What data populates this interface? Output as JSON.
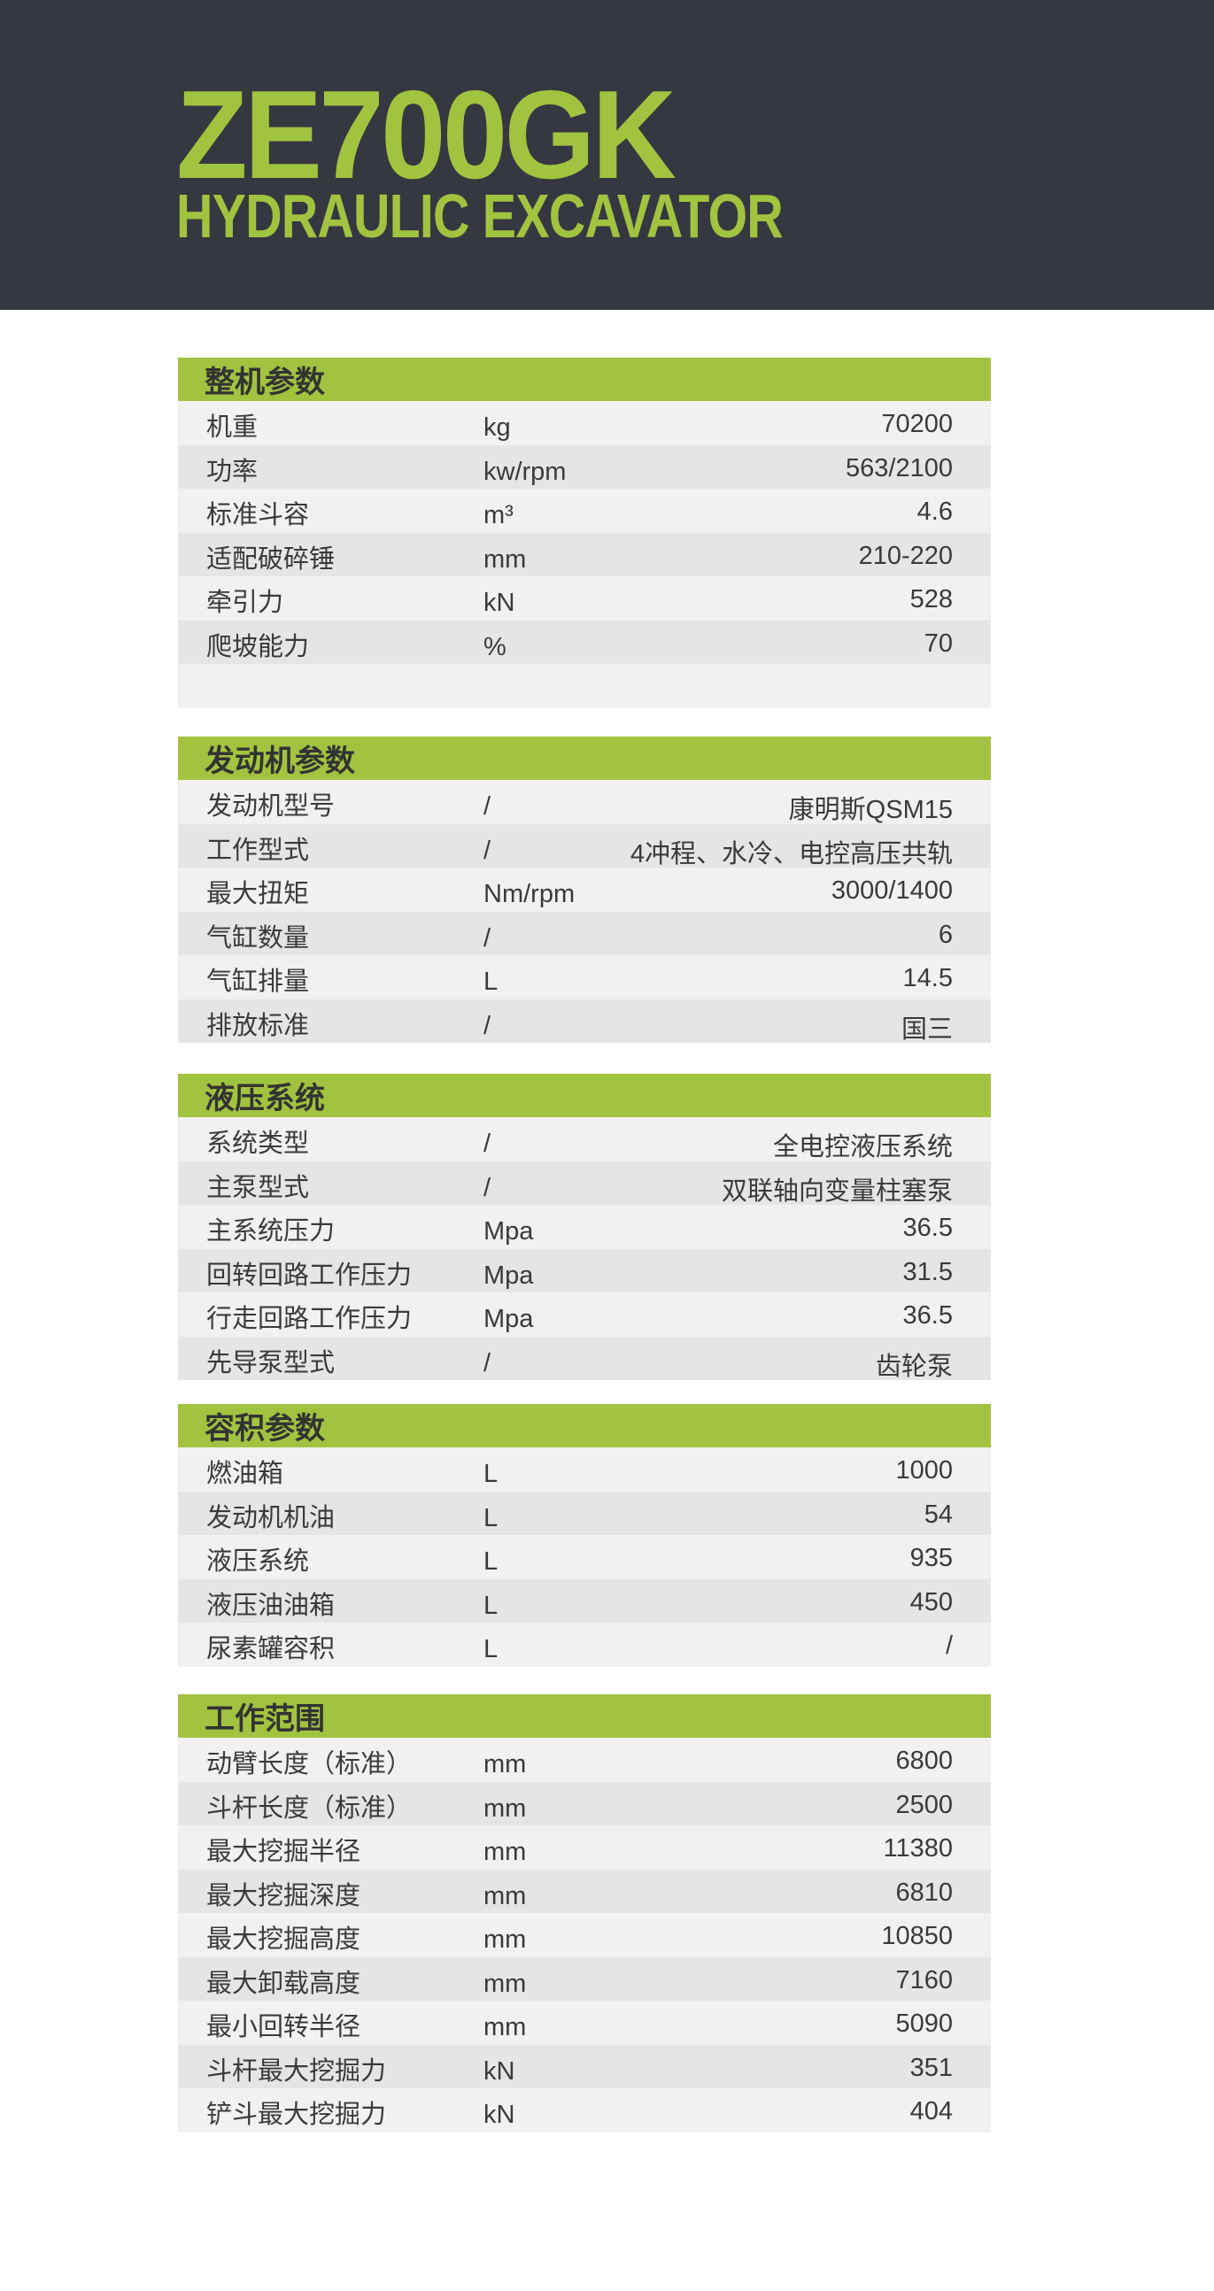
{
  "colors": {
    "dark": "#353840",
    "green": "#a2c33f"
  },
  "header": {
    "model": "ZE700GK",
    "subtitle": "HYDRAULIC EXCAVATOR"
  },
  "sections": [
    {
      "title": "整机参数",
      "rows": [
        {
          "label": "机重",
          "unit": "kg",
          "value": "70200"
        },
        {
          "label": "功率",
          "unit": "kw/rpm",
          "value": "563/2100"
        },
        {
          "label": "标准斗容",
          "unit": "m³",
          "value": "4.6"
        },
        {
          "label": "适配破碎锤",
          "unit": "mm",
          "value": "210-220"
        },
        {
          "label": "牵引力",
          "unit": "kN",
          "value": "528"
        },
        {
          "label": "爬坡能力",
          "unit": "%",
          "value": "70"
        },
        {
          "label": "",
          "unit": "",
          "value": ""
        }
      ]
    },
    {
      "title": "发动机参数",
      "rows": [
        {
          "label": "发动机型号",
          "unit": "/",
          "value": "康明斯QSM15"
        },
        {
          "label": "工作型式",
          "unit": "/",
          "value": "4冲程、水冷、电控高压共轨"
        },
        {
          "label": "最大扭矩",
          "unit": "Nm/rpm",
          "value": "3000/1400"
        },
        {
          "label": "气缸数量",
          "unit": "/",
          "value": "6"
        },
        {
          "label": "气缸排量",
          "unit": "L",
          "value": "14.5"
        },
        {
          "label": "排放标准",
          "unit": "/",
          "value": "国三"
        }
      ]
    },
    {
      "title": "液压系统",
      "rows": [
        {
          "label": "系统类型",
          "unit": "/",
          "value": "全电控液压系统"
        },
        {
          "label": "主泵型式",
          "unit": "/",
          "value": "双联轴向变量柱塞泵"
        },
        {
          "label": "主系统压力",
          "unit": "Mpa",
          "value": "36.5"
        },
        {
          "label": "回转回路工作压力",
          "unit": "Mpa",
          "value": "31.5"
        },
        {
          "label": "行走回路工作压力",
          "unit": "Mpa",
          "value": "36.5"
        },
        {
          "label": "先导泵型式",
          "unit": "/",
          "value": "齿轮泵"
        }
      ]
    },
    {
      "title": "容积参数",
      "rows": [
        {
          "label": "燃油箱",
          "unit": "L",
          "value": "1000"
        },
        {
          "label": "发动机机油",
          "unit": "L",
          "value": "54"
        },
        {
          "label": "液压系统",
          "unit": "L",
          "value": "935"
        },
        {
          "label": "液压油油箱",
          "unit": "L",
          "value": "450"
        },
        {
          "label": "尿素罐容积",
          "unit": "L",
          "value": "/"
        }
      ]
    },
    {
      "title": "工作范围",
      "rows": [
        {
          "label": "动臂长度（标准）",
          "unit": "mm",
          "value": "6800"
        },
        {
          "label": "斗杆长度（标准）",
          "unit": "mm",
          "value": "2500"
        },
        {
          "label": "最大挖掘半径",
          "unit": "mm",
          "value": "11380"
        },
        {
          "label": "最大挖掘深度",
          "unit": "mm",
          "value": "6810"
        },
        {
          "label": "最大挖掘高度",
          "unit": "mm",
          "value": "10850"
        },
        {
          "label": "最大卸载高度",
          "unit": "mm",
          "value": "7160"
        },
        {
          "label": "最小回转半径",
          "unit": "mm",
          "value": "5090"
        },
        {
          "label": "斗杆最大挖掘力",
          "unit": "kN",
          "value": "351"
        },
        {
          "label": "铲斗最大挖掘力",
          "unit": "kN",
          "value": "404"
        }
      ]
    }
  ]
}
